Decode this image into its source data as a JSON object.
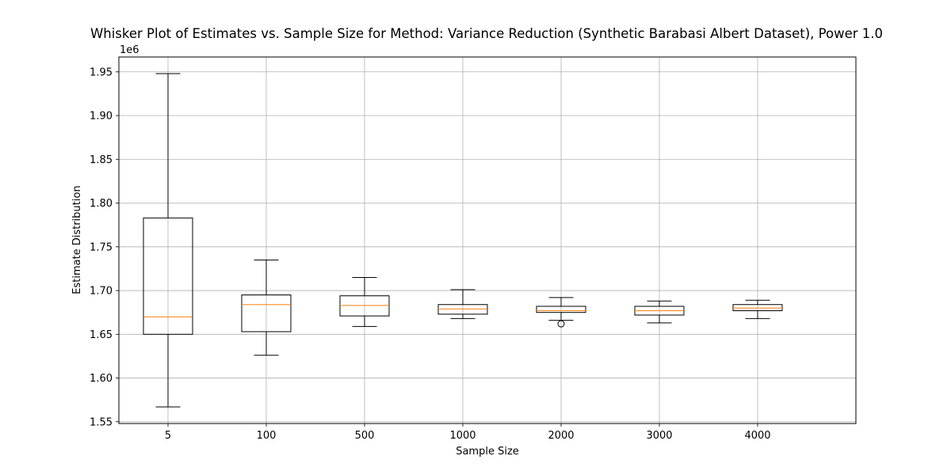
{
  "chart_data": {
    "type": "box",
    "title": "Whisker Plot of Estimates vs. Sample Size for Method: Variance Reduction (Synthetic Barabasi Albert Dataset), Power 1.0",
    "xlabel": "Sample Size",
    "ylabel": "Estimate Distribution",
    "y_offset_label": "1e6",
    "categories": [
      "5",
      "100",
      "500",
      "1000",
      "2000",
      "3000",
      "4000"
    ],
    "ylim": [
      1.548,
      1.967
    ],
    "yticks": [
      1.55,
      1.6,
      1.65,
      1.7,
      1.75,
      1.8,
      1.85,
      1.9,
      1.95
    ],
    "ytick_labels": [
      "1.55",
      "1.60",
      "1.65",
      "1.70",
      "1.75",
      "1.80",
      "1.85",
      "1.90",
      "1.95"
    ],
    "grid": true,
    "boxes": [
      {
        "category": "5",
        "whisker_low": 1.567,
        "q1": 1.65,
        "median": 1.67,
        "q3": 1.783,
        "whisker_high": 1.948,
        "outliers": []
      },
      {
        "category": "100",
        "whisker_low": 1.626,
        "q1": 1.653,
        "median": 1.684,
        "q3": 1.695,
        "whisker_high": 1.735,
        "outliers": []
      },
      {
        "category": "500",
        "whisker_low": 1.659,
        "q1": 1.671,
        "median": 1.683,
        "q3": 1.694,
        "whisker_high": 1.715,
        "outliers": []
      },
      {
        "category": "1000",
        "whisker_low": 1.668,
        "q1": 1.673,
        "median": 1.679,
        "q3": 1.684,
        "whisker_high": 1.701,
        "outliers": []
      },
      {
        "category": "2000",
        "whisker_low": 1.666,
        "q1": 1.675,
        "median": 1.677,
        "q3": 1.682,
        "whisker_high": 1.692,
        "outliers": [
          1.662
        ]
      },
      {
        "category": "3000",
        "whisker_low": 1.663,
        "q1": 1.672,
        "median": 1.677,
        "q3": 1.682,
        "whisker_high": 1.688,
        "outliers": []
      },
      {
        "category": "4000",
        "whisker_low": 1.668,
        "q1": 1.677,
        "median": 1.68,
        "q3": 1.684,
        "whisker_high": 1.689,
        "outliers": []
      }
    ],
    "colors": {
      "box": "#000000",
      "median": "#ff7f0e",
      "grid": "#b0b0b0"
    }
  }
}
